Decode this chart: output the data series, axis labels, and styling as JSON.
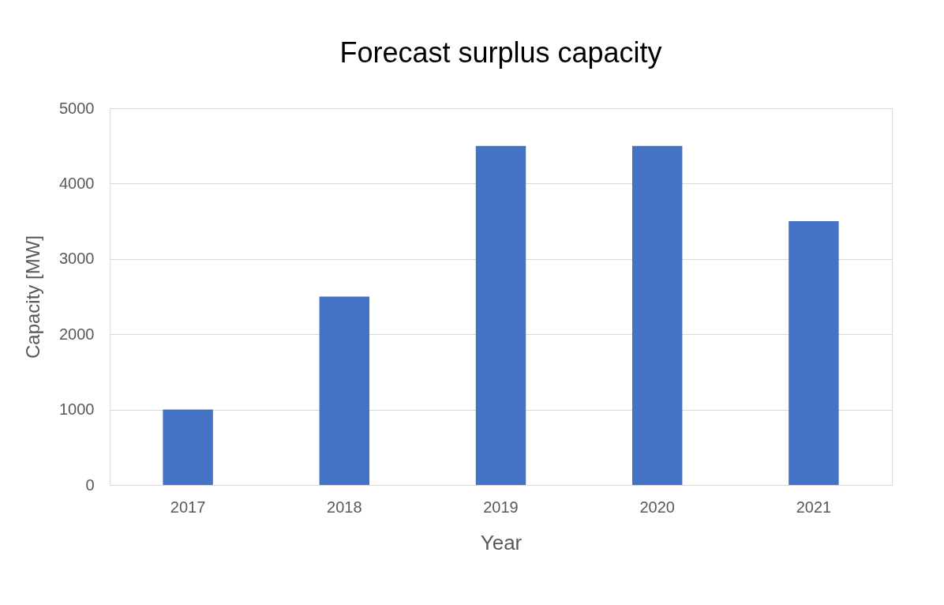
{
  "chart_data": {
    "type": "bar",
    "title": "Forecast surplus capacity",
    "xlabel": "Year",
    "ylabel": "Capacity [MW]",
    "categories": [
      "2017",
      "2018",
      "2019",
      "2020",
      "2021"
    ],
    "values": [
      1000,
      2500,
      4500,
      4500,
      3500
    ],
    "color": "#4472c4",
    "ylim": [
      0,
      5000
    ],
    "yticks": [
      0,
      1000,
      2000,
      3000,
      4000,
      5000
    ],
    "grid": "y"
  }
}
